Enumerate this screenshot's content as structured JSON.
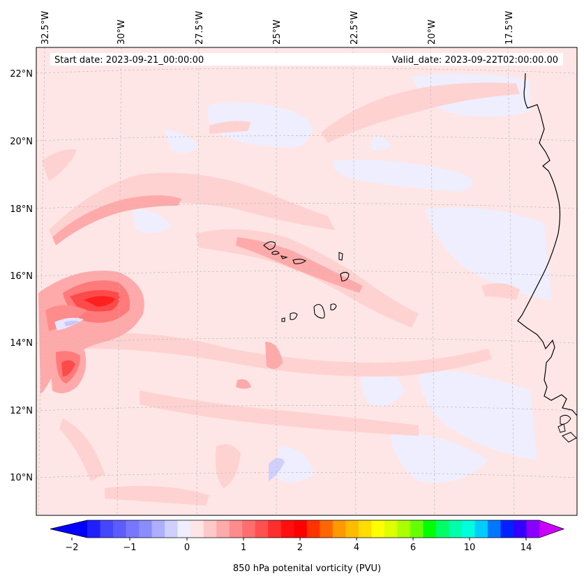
{
  "map": {
    "start_date": "Start date: 2023-09-21_00:00:00",
    "valid_date": "Valid_date: 2023-09-22T02:00:00.00",
    "lon_labels": [
      "32.5°W",
      "30°W",
      "27.5°W",
      "25°W",
      "22.5°W",
      "20°W",
      "17.5°W"
    ],
    "lat_labels": [
      "22°N",
      "20°N",
      "18°N",
      "16°N",
      "14°N",
      "12°N",
      "10°N"
    ],
    "field": "850 hPa potenital vorticity (PVU)"
  },
  "colorbar": {
    "label": "850 hPa potenital vorticity (PVU)",
    "tick_labels": [
      "−2",
      "−1",
      "0",
      "1",
      "2",
      "4",
      "6",
      "10",
      "14"
    ],
    "colors": [
      "#2020ff",
      "#4646ff",
      "#5c5cff",
      "#7676ff",
      "#8c8cff",
      "#aeaeff",
      "#d0d0ff",
      "#eeeeff",
      "#ffe6e6",
      "#ffc8c8",
      "#ffaaaa",
      "#ff8c8c",
      "#ff6e6e",
      "#ff5050",
      "#ff2e2e",
      "#ff1010",
      "#ff0000",
      "#ff3300",
      "#ff6600",
      "#ff9900",
      "#ffbb00",
      "#ffdd00",
      "#ffff00",
      "#ddff00",
      "#aaff00",
      "#66ff00",
      "#00ff00",
      "#00ff66",
      "#00ffaa",
      "#00ffdd",
      "#00ccff",
      "#0077ff",
      "#0022ff",
      "#3300ff",
      "#8800ff"
    ],
    "under_color": "#0000ff",
    "over_color": "#cc00ff",
    "background_color": "#ffe6e6"
  }
}
